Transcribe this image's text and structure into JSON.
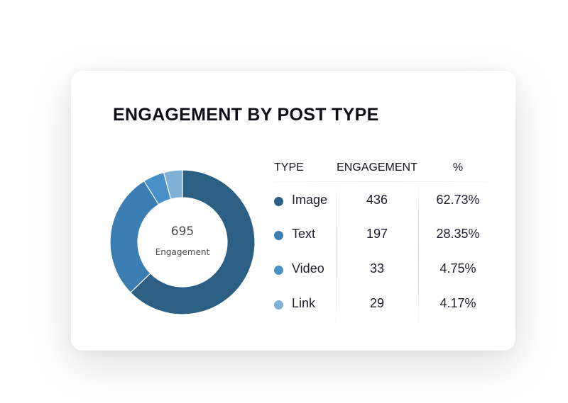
{
  "chart_data": {
    "type": "pie",
    "title": "ENGAGEMENT BY POST TYPE",
    "center_value": "695",
    "center_label": "Engagement",
    "columns": [
      "TYPE",
      "ENGAGEMENT",
      "%"
    ],
    "slices": [
      {
        "label": "Image",
        "value": 436,
        "percent": "62.73%",
        "color": "#2b5f84"
      },
      {
        "label": "Text",
        "value": 197,
        "percent": "28.35%",
        "color": "#3a7eb3"
      },
      {
        "label": "Video",
        "value": 33,
        "percent": "4.75%",
        "color": "#4a90c8"
      },
      {
        "label": "Link",
        "value": 29,
        "percent": "4.17%",
        "color": "#7fb0d6"
      }
    ]
  }
}
